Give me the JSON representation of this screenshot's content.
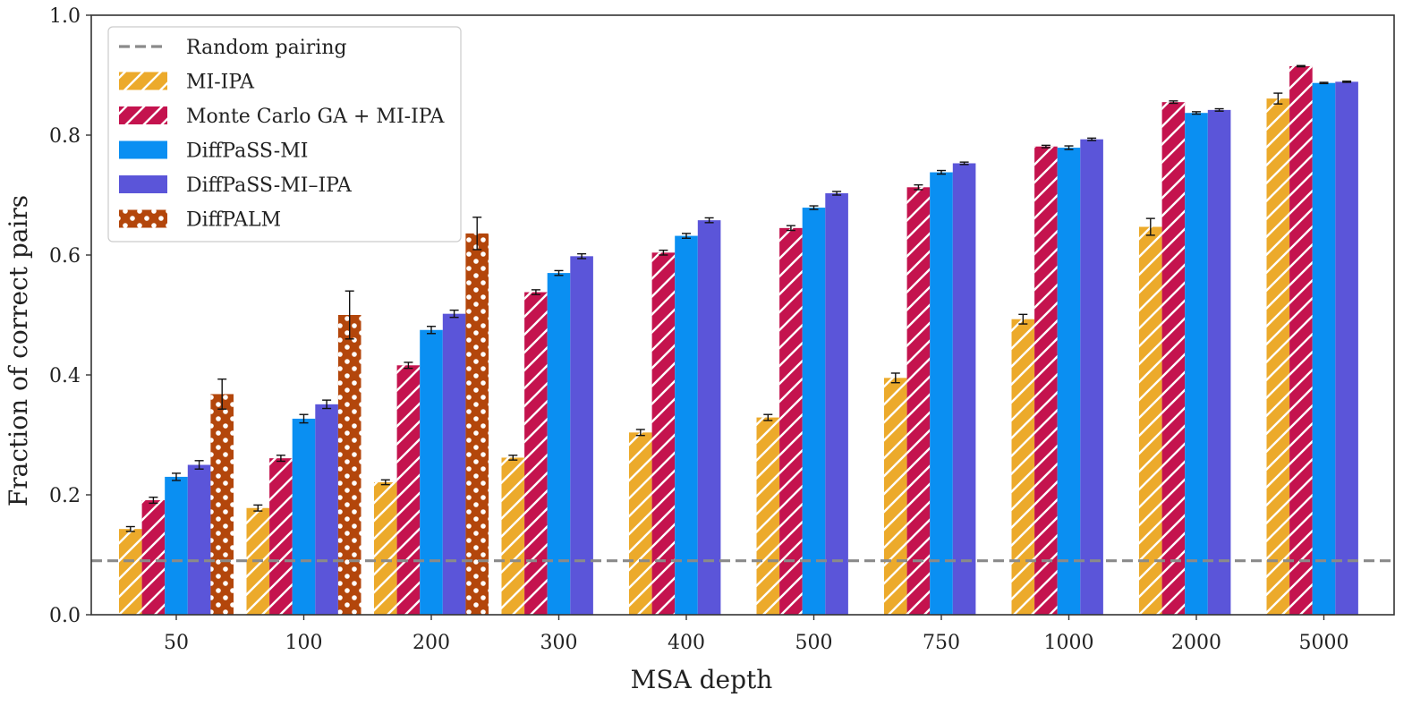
{
  "chart_data": {
    "type": "bar",
    "xlabel": "MSA depth",
    "ylabel": "Fraction of correct pairs",
    "ylim": [
      0,
      1.0
    ],
    "yticks": [
      "0.0",
      "0.2",
      "0.4",
      "0.6",
      "0.8",
      "1.0"
    ],
    "categories": [
      "50",
      "100",
      "200",
      "300",
      "400",
      "500",
      "750",
      "1000",
      "2000",
      "5000"
    ],
    "legend_position": "top-left",
    "random_pairing": {
      "name": "Random pairing",
      "value": 0.09,
      "color": "#8a8a8a"
    },
    "series": [
      {
        "name": "MI-IPA",
        "color": "#ecaa2b",
        "pattern": "hatch",
        "values": [
          0.143,
          0.178,
          0.221,
          0.262,
          0.304,
          0.329,
          0.395,
          0.493,
          0.647,
          0.861
        ],
        "errors": [
          0.004,
          0.005,
          0.004,
          0.004,
          0.005,
          0.005,
          0.008,
          0.008,
          0.014,
          0.009
        ]
      },
      {
        "name": "Monte Carlo GA + MI-IPA",
        "color": "#c4134e",
        "pattern": "hatch",
        "values": [
          0.191,
          0.261,
          0.416,
          0.538,
          0.604,
          0.645,
          0.713,
          0.781,
          0.855,
          0.915
        ],
        "errors": [
          0.005,
          0.005,
          0.005,
          0.004,
          0.004,
          0.004,
          0.004,
          0.002,
          0.002,
          0.001
        ]
      },
      {
        "name": "DiffPaSS-MI",
        "color": "#0a8ff2",
        "pattern": "solid",
        "values": [
          0.23,
          0.327,
          0.475,
          0.57,
          0.632,
          0.679,
          0.738,
          0.779,
          0.837,
          0.887
        ],
        "errors": [
          0.006,
          0.007,
          0.006,
          0.004,
          0.004,
          0.003,
          0.003,
          0.003,
          0.002,
          0.001
        ]
      },
      {
        "name": "DiffPaSS-MI–IPA",
        "color": "#5b55d9",
        "pattern": "solid",
        "values": [
          0.25,
          0.351,
          0.502,
          0.598,
          0.658,
          0.703,
          0.753,
          0.793,
          0.842,
          0.889
        ],
        "errors": [
          0.007,
          0.007,
          0.006,
          0.004,
          0.004,
          0.003,
          0.002,
          0.002,
          0.002,
          0.001
        ]
      },
      {
        "name": "DiffPALM",
        "color": "#b3460b",
        "pattern": "dots",
        "values": [
          0.368,
          0.5,
          0.636,
          null,
          null,
          null,
          null,
          null,
          null,
          null
        ],
        "errors": [
          0.025,
          0.04,
          0.027,
          null,
          null,
          null,
          null,
          null,
          null,
          null
        ]
      }
    ]
  }
}
